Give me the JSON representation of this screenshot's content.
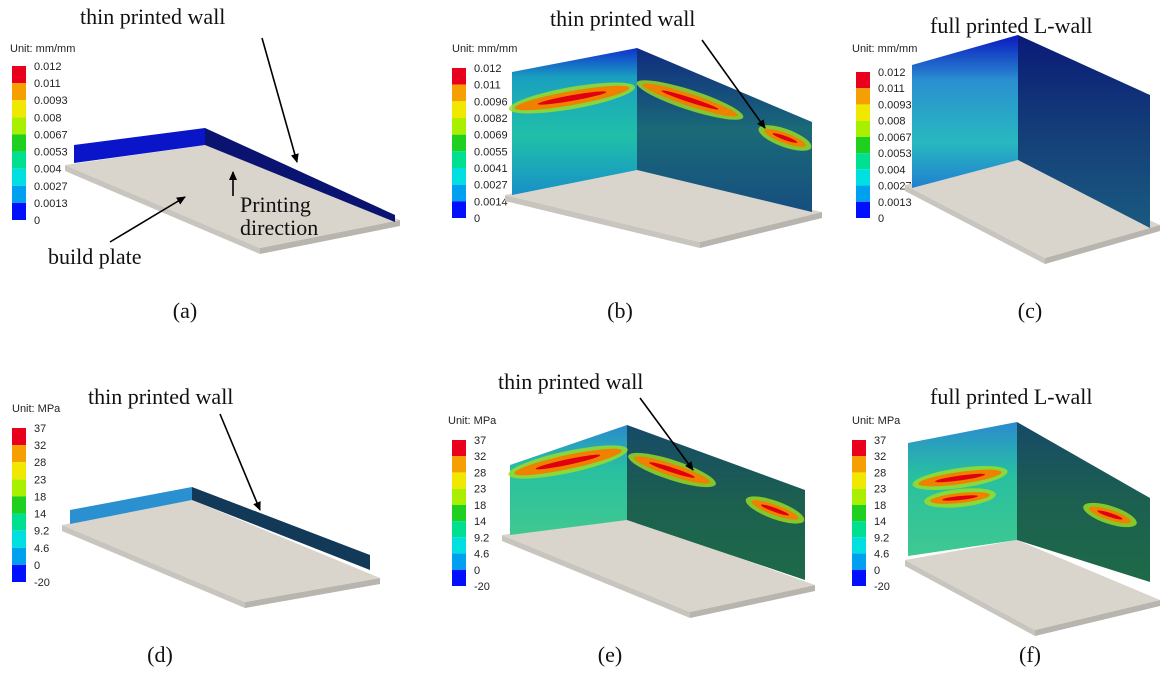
{
  "panels": [
    {
      "label": "(a)",
      "legend": {
        "unit": "Unit: mm/mm",
        "ticks": [
          "0.012",
          "0.011",
          "0.0093",
          "0.008",
          "0.0067",
          "0.0053",
          "0.004",
          "0.0027",
          "0.0013",
          "0"
        ]
      },
      "annotations": [
        "thin printed wall",
        "Printing",
        "direction",
        "build plate"
      ]
    },
    {
      "label": "(b)",
      "legend": {
        "unit": "Unit: mm/mm",
        "ticks": [
          "0.012",
          "0.011",
          "0.0096",
          "0.0082",
          "0.0069",
          "0.0055",
          "0.0041",
          "0.0027",
          "0.0014",
          "0"
        ]
      },
      "annotations": [
        "thin printed wall"
      ]
    },
    {
      "label": "(c)",
      "legend": {
        "unit": "Unit: mm/mm",
        "ticks": [
          "0.012",
          "0.011",
          "0.0093",
          "0.008",
          "0.0067",
          "0.0053",
          "0.004",
          "0.0027",
          "0.0013",
          "0"
        ]
      },
      "annotations": [
        "full printed L-wall"
      ]
    },
    {
      "label": "(d)",
      "legend": {
        "unit": "Unit: MPa",
        "ticks": [
          "37",
          "32",
          "28",
          "23",
          "18",
          "14",
          "9.2",
          "4.6",
          "0",
          "-20"
        ]
      },
      "annotations": [
        "thin printed wall"
      ]
    },
    {
      "label": "(e)",
      "legend": {
        "unit": "Unit: MPa",
        "ticks": [
          "37",
          "32",
          "28",
          "23",
          "18",
          "14",
          "9.2",
          "4.6",
          "0",
          "-20"
        ]
      },
      "annotations": [
        "thin printed wall"
      ]
    },
    {
      "label": "(f)",
      "legend": {
        "unit": "Unit: MPa",
        "ticks": [
          "37",
          "32",
          "28",
          "23",
          "18",
          "14",
          "9.2",
          "4.6",
          "0",
          "-20"
        ]
      },
      "annotations": [
        "full printed L-wall"
      ]
    }
  ]
}
